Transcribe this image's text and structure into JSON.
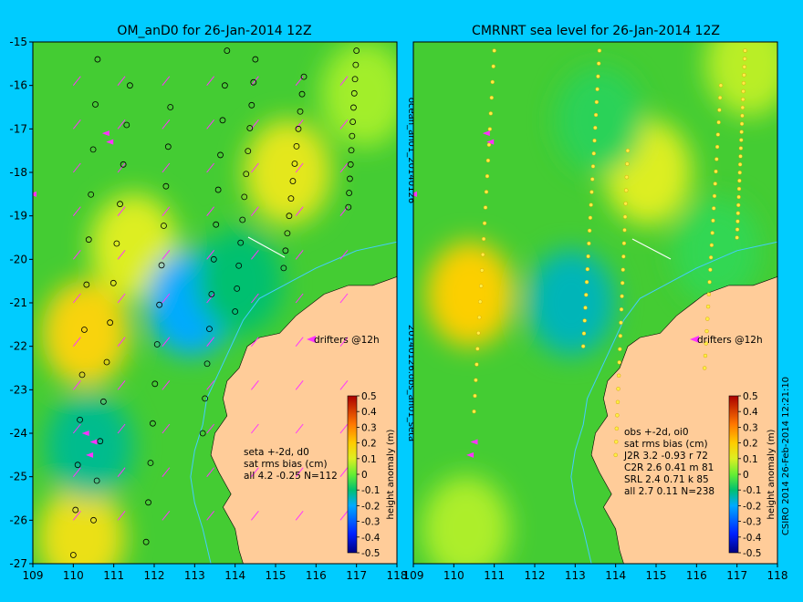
{
  "colors": {
    "background": "#00ccff",
    "land": "#ffcc99",
    "drifter": "#ff33ff",
    "coast_line": "#44ccff"
  },
  "chart_data": [
    {
      "type": "heatmap",
      "title": "OM_anD0 for 26-Jan-2014 12Z",
      "xlim": [
        109,
        118
      ],
      "ylim": [
        -27,
        -15
      ],
      "x_ticks": [
        "109",
        "110",
        "111",
        "112",
        "113",
        "114",
        "115",
        "116",
        "117",
        "118"
      ],
      "y_ticks": [
        "-15",
        "-16",
        "-17",
        "-18",
        "-19",
        "-20",
        "-21",
        "-22",
        "-23",
        "-24",
        "-25",
        "-26",
        "-27"
      ],
      "drifters_label": "drifters @12h",
      "stats": [
        "seta +-2d, d0",
        "sat rms bias (cm)",
        "all 4.2 -0.25 N=112"
      ],
      "colorbar": {
        "label": "height anomaly (m)",
        "ticks": [
          "0.5",
          "0.4",
          "0.3",
          "0.2",
          "0.1",
          "0",
          "-0.1",
          "-0.2",
          "-0.3",
          "-0.4",
          "-0.5"
        ]
      },
      "side_label": "ocean_an01_20140126",
      "blobs": [
        {
          "x": 110.3,
          "y": -21.7,
          "v": 0.18
        },
        {
          "x": 110.2,
          "y": -26.4,
          "v": 0.14
        },
        {
          "x": 115.3,
          "y": -18.0,
          "v": 0.12
        },
        {
          "x": 111.5,
          "y": -19.7,
          "v": 0.1
        },
        {
          "x": 117.2,
          "y": -16.2,
          "v": 0.05
        },
        {
          "x": 112.9,
          "y": -21.0,
          "v": -0.2
        },
        {
          "x": 110.4,
          "y": -24.3,
          "v": -0.12
        },
        {
          "x": 114.1,
          "y": -20.5,
          "v": -0.1
        }
      ]
    },
    {
      "type": "heatmap",
      "title": "CMRNRT sea level  for 26-Jan-2014 12Z",
      "xlim": [
        109,
        118
      ],
      "ylim": [
        -27,
        -15
      ],
      "x_ticks": [
        "109",
        "110",
        "111",
        "112",
        "113",
        "114",
        "115",
        "116",
        "117",
        "118"
      ],
      "y_ticks": [],
      "drifters_label": "drifters @12h",
      "stats": [
        "obs +-2d, oi0",
        "sat rms bias (cm)",
        "J2R   3.2 -0.93 r 72",
        "C2R   2.6 0.41 m 81",
        "SRL   2.4 0.71 k 85",
        "all   2.7 0.11 N=238"
      ],
      "colorbar": {
        "label": "height anomaly (m)",
        "ticks": [
          "0.5",
          "0.4",
          "0.3",
          "0.2",
          "0.1",
          "0",
          "-0.1",
          "-0.2",
          "-0.3",
          "-0.4",
          "-0.5"
        ]
      },
      "side_label": "20140126.obs_an01_seta",
      "blobs": [
        {
          "x": 110.4,
          "y": -20.8,
          "v": 0.19
        },
        {
          "x": 114.8,
          "y": -18.0,
          "v": 0.1
        },
        {
          "x": 117.3,
          "y": -15.5,
          "v": 0.07
        },
        {
          "x": 110.3,
          "y": -26.2,
          "v": 0.06
        },
        {
          "x": 112.9,
          "y": -21.0,
          "v": -0.15
        },
        {
          "x": 113.6,
          "y": -16.8,
          "v": -0.06
        },
        {
          "x": 116.5,
          "y": -19.8,
          "v": -0.05
        }
      ]
    }
  ],
  "footer_label": "CSIRO 2014   26-Feb-2014 12:21:10"
}
